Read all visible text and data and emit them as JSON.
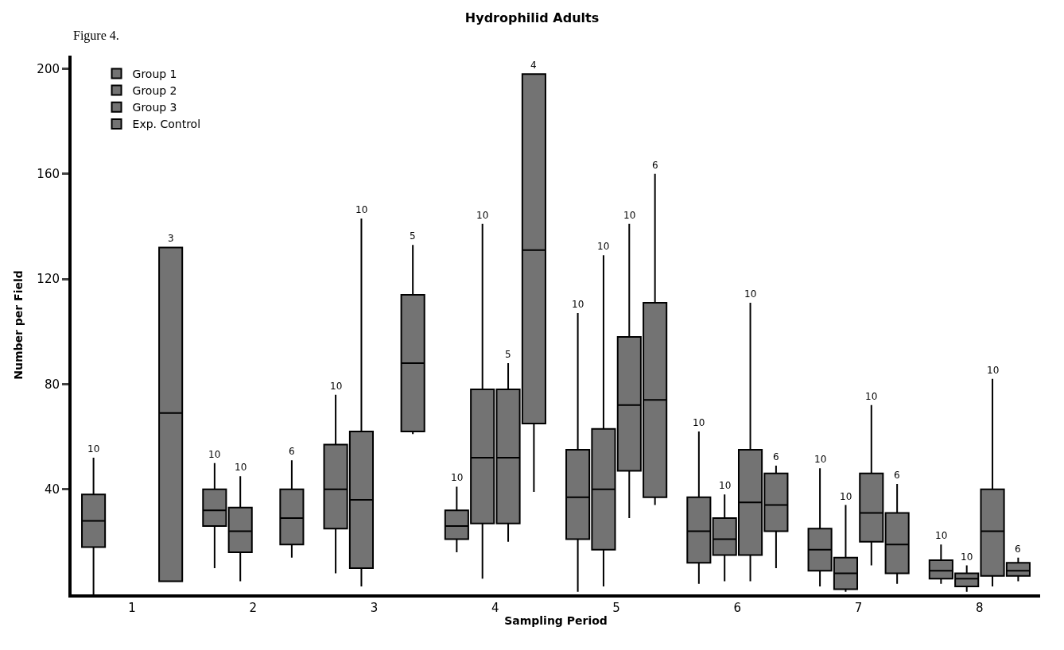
{
  "chart_data": {
    "type": "box",
    "title": "Hydrophilid Adults",
    "xlabel": "Sampling Period",
    "ylabel": "Number per Field",
    "categories": [
      "1",
      "2",
      "3",
      "4",
      "5",
      "6",
      "7",
      "8"
    ],
    "ylim": [
      0,
      205
    ],
    "yticks": [
      40,
      80,
      120,
      160,
      200
    ],
    "legend": "top left",
    "series": [
      {
        "name": "Group 1",
        "color": "#000000",
        "boxes": [
          {
            "low": 0,
            "q1": 18,
            "median": 28,
            "q3": 38,
            "high": 52
          },
          {
            "low": 10,
            "q1": 26,
            "median": 32,
            "q3": 40,
            "high": 50
          },
          {
            "low": 8,
            "q1": 25,
            "median": 40,
            "q3": 57,
            "high": 76
          },
          {
            "low": 16,
            "q1": 21,
            "median": 26,
            "q3": 32,
            "high": 41
          },
          {
            "low": 1,
            "q1": 21,
            "median": 37,
            "q3": 55,
            "high": 107
          },
          {
            "low": 4,
            "q1": 12,
            "median": 24,
            "q3": 37,
            "high": 62
          },
          {
            "low": 3,
            "q1": 9,
            "median": 17,
            "q3": 25,
            "high": 48
          },
          {
            "low": 4,
            "q1": 6,
            "median": 9,
            "q3": 13,
            "high": 19
          }
        ]
      },
      {
        "name": "Group 2",
        "color": "#000000",
        "boxes": [
          null,
          {
            "low": 5,
            "q1": 16,
            "median": 24,
            "q3": 33,
            "high": 45
          },
          {
            "low": 3,
            "q1": 10,
            "median": 36,
            "q3": 62,
            "high": 143
          },
          {
            "low": 6,
            "q1": 27,
            "median": 52,
            "q3": 78,
            "high": 141
          },
          {
            "low": 3,
            "q1": 17,
            "median": 40,
            "q3": 63,
            "high": 129
          },
          {
            "low": 5,
            "q1": 15,
            "median": 21,
            "q3": 29,
            "high": 38
          },
          {
            "low": 1,
            "q1": 2,
            "median": 8,
            "q3": 14,
            "high": 34
          },
          {
            "low": 1,
            "q1": 3,
            "median": 6,
            "q3": 8,
            "high": 11
          }
        ]
      },
      {
        "name": "Group 3",
        "color": "#000000",
        "boxes": [
          null,
          null,
          null,
          {
            "low": 20,
            "q1": 27,
            "median": 52,
            "q3": 78,
            "high": 88
          },
          {
            "low": 29,
            "q1": 47,
            "median": 72,
            "q3": 98,
            "high": 141
          },
          {
            "low": 5,
            "q1": 15,
            "median": 35,
            "q3": 55,
            "high": 111
          },
          {
            "low": 11,
            "q1": 20,
            "median": 31,
            "q3": 46,
            "high": 72
          },
          {
            "low": 3,
            "q1": 7,
            "median": 24,
            "q3": 40,
            "high": 82
          }
        ]
      },
      {
        "name": "Exp. Control",
        "color": "#000000",
        "boxes": [
          {
            "low": 5,
            "q1": 5,
            "median": 69,
            "q3": 132,
            "high": 132
          },
          {
            "low": 14,
            "q1": 19,
            "median": 29,
            "q3": 40,
            "high": 51
          },
          {
            "low": 61,
            "q1": 62,
            "median": 88,
            "q3": 114,
            "high": 133
          },
          {
            "low": 39,
            "q1": 65,
            "median": 131,
            "q3": 198,
            "high": 198
          },
          {
            "low": 34,
            "q1": 37,
            "median": 74,
            "q3": 111,
            "high": 160
          },
          {
            "low": 10,
            "q1": 24,
            "median": 34,
            "q3": 46,
            "high": 49
          },
          {
            "low": 4,
            "q1": 8,
            "median": 19,
            "q3": 31,
            "high": 42
          },
          {
            "low": 5,
            "q1": 7,
            "median": 9,
            "q3": 12,
            "high": 14
          }
        ]
      }
    ],
    "annotations": [
      "Figure 4.",
      "10",
      "3",
      "10",
      "10",
      "6",
      "10",
      "10",
      "5",
      "10",
      "10",
      "5",
      "4",
      "10",
      "10",
      "10",
      "6",
      "10",
      "10",
      "10",
      "6",
      "10",
      "10",
      "10",
      "6",
      "10",
      "10",
      "10",
      "6"
    ]
  }
}
